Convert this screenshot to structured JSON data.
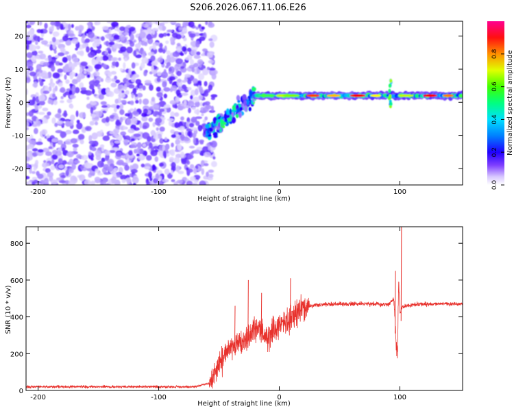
{
  "figure": {
    "title": "S206.2026.067.11.06.E26"
  },
  "chart_data": [
    {
      "type": "heatmap",
      "title": "",
      "xlabel": "Height of straight line (km)",
      "ylabel": "Frequency (Hz)",
      "xlim": [
        -210,
        152
      ],
      "ylim": [
        -25,
        24.5
      ],
      "xticks": [
        -200,
        -100,
        0,
        100
      ],
      "yticks": [
        -20,
        -10,
        0,
        10,
        20
      ],
      "noise_region_x": [
        -210,
        -58
      ],
      "features": [
        {
          "kind": "transition",
          "x": [
            -60,
            -20
          ],
          "freq_range": [
            -13,
            7
          ]
        },
        {
          "kind": "ridge",
          "x": [
            -20,
            152
          ],
          "freq": [
            1.5,
            2.5
          ],
          "peak_amp": 0.9
        },
        {
          "kind": "spike",
          "x": 92,
          "freq_range": [
            -2,
            7
          ]
        }
      ],
      "colorbar": {
        "label": "Normalized spectral amplitude",
        "range": [
          0,
          1
        ],
        "ticks": [
          "0.0",
          "0.2",
          "0.4",
          "0.6",
          "0.8"
        ],
        "colormap": [
          "#ffffff",
          "#a080ff",
          "#4000ff",
          "#0000ff",
          "#00c0ff",
          "#00ff80",
          "#80ff00",
          "#ffff00",
          "#ff8000",
          "#ff0000",
          "#ff0080"
        ]
      }
    },
    {
      "type": "line",
      "title": "",
      "xlabel": "Height of straight line (km)",
      "ylabel": "SNR (10 * v/v)",
      "xlim": [
        -210,
        152
      ],
      "ylim": [
        0,
        890
      ],
      "xticks": [
        -200,
        -100,
        0,
        100
      ],
      "yticks": [
        0,
        200,
        400,
        600,
        800
      ],
      "series": [
        {
          "name": "SNR",
          "color": "#e8322d",
          "x": [
            -210,
            -180,
            -150,
            -120,
            -90,
            -70,
            -58,
            -50,
            -45,
            -40,
            -35,
            -30,
            -25,
            -20,
            -15,
            -10,
            -5,
            0,
            5,
            10,
            15,
            20,
            25,
            30,
            40,
            50,
            60,
            70,
            80,
            90,
            95,
            97,
            98,
            99,
            100,
            102,
            110,
            120,
            130,
            140,
            152
          ],
          "y": [
            20,
            20,
            20,
            20,
            20,
            20,
            40,
            130,
            190,
            240,
            280,
            260,
            300,
            330,
            320,
            290,
            330,
            360,
            380,
            390,
            430,
            450,
            460,
            465,
            470,
            470,
            470,
            470,
            470,
            465,
            500,
            240,
            190,
            600,
            420,
            455,
            465,
            470,
            470,
            470,
            470
          ]
        }
      ],
      "annotations": [
        {
          "x": -37,
          "y": 460
        },
        {
          "x": -26,
          "y": 600
        },
        {
          "x": -15,
          "y": 530
        },
        {
          "x": 9,
          "y": 610
        },
        {
          "x": 96,
          "y": 650
        },
        {
          "x": 101,
          "y": 890
        }
      ]
    }
  ]
}
